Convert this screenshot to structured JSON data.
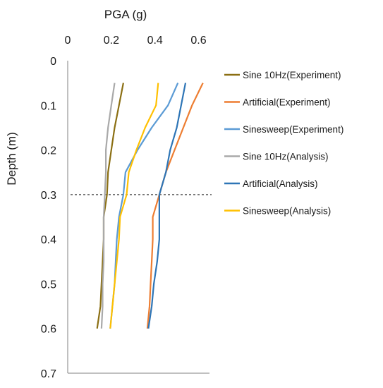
{
  "chart_data": {
    "type": "line",
    "x_axis": {
      "label": "PGA (g)",
      "position": "top",
      "range": [
        0,
        0.65
      ],
      "ticks": [
        "0",
        "0.2",
        "0.4",
        "0.6"
      ],
      "tick_values": [
        0,
        0.2,
        0.4,
        0.6
      ]
    },
    "y_axis": {
      "label": "Depth (m)",
      "reversed": true,
      "range": [
        0,
        0.7
      ],
      "ticks": [
        "0",
        "0.1",
        "0.2",
        "0.3",
        "0.4",
        "0.5",
        "0.6",
        "0.7"
      ],
      "tick_values": [
        0,
        0.1,
        0.2,
        0.3,
        0.4,
        0.5,
        0.6,
        0.7
      ]
    },
    "grid": false,
    "reference_line": {
      "depth": 0.3,
      "style": "dashed"
    },
    "legend": {
      "placement": "right"
    },
    "series": [
      {
        "name": "Sine 10Hz(Experiment)",
        "color": "#8B6F13",
        "points": [
          [
            0.255,
            0.05
          ],
          [
            0.235,
            0.1
          ],
          [
            0.215,
            0.15
          ],
          [
            0.2,
            0.2
          ],
          [
            0.185,
            0.25
          ],
          [
            0.18,
            0.3
          ],
          [
            0.165,
            0.35
          ],
          [
            0.165,
            0.4
          ],
          [
            0.16,
            0.45
          ],
          [
            0.155,
            0.5
          ],
          [
            0.15,
            0.55
          ],
          [
            0.135,
            0.6
          ]
        ]
      },
      {
        "name": "Artificial(Experiment)",
        "color": "#ED7D31",
        "points": [
          [
            0.62,
            0.05
          ],
          [
            0.57,
            0.1
          ],
          [
            0.53,
            0.15
          ],
          [
            0.49,
            0.2
          ],
          [
            0.45,
            0.25
          ],
          [
            0.42,
            0.3
          ],
          [
            0.39,
            0.35
          ],
          [
            0.39,
            0.4
          ],
          [
            0.385,
            0.45
          ],
          [
            0.38,
            0.5
          ],
          [
            0.375,
            0.55
          ],
          [
            0.365,
            0.6
          ]
        ]
      },
      {
        "name": "Sinesweep(Experiment)",
        "color": "#5B9BD5",
        "points": [
          [
            0.505,
            0.05
          ],
          [
            0.46,
            0.1
          ],
          [
            0.385,
            0.15
          ],
          [
            0.32,
            0.2
          ],
          [
            0.265,
            0.25
          ],
          [
            0.255,
            0.3
          ],
          [
            0.235,
            0.35
          ],
          [
            0.225,
            0.4
          ],
          [
            0.22,
            0.45
          ],
          [
            0.215,
            0.5
          ],
          [
            0.205,
            0.55
          ],
          [
            0.195,
            0.6
          ]
        ]
      },
      {
        "name": "Sine 10Hz(Analysis)",
        "color": "#A9A9A9",
        "points": [
          [
            0.215,
            0.05
          ],
          [
            0.2,
            0.1
          ],
          [
            0.185,
            0.15
          ],
          [
            0.175,
            0.2
          ],
          [
            0.175,
            0.25
          ],
          [
            0.17,
            0.3
          ],
          [
            0.165,
            0.35
          ],
          [
            0.165,
            0.4
          ],
          [
            0.165,
            0.45
          ],
          [
            0.16,
            0.5
          ],
          [
            0.16,
            0.55
          ],
          [
            0.155,
            0.6
          ]
        ]
      },
      {
        "name": "Artificial(Analysis)",
        "color": "#2E75B6",
        "points": [
          [
            0.54,
            0.05
          ],
          [
            0.52,
            0.1
          ],
          [
            0.5,
            0.15
          ],
          [
            0.47,
            0.2
          ],
          [
            0.45,
            0.25
          ],
          [
            0.42,
            0.3
          ],
          [
            0.42,
            0.35
          ],
          [
            0.42,
            0.4
          ],
          [
            0.41,
            0.45
          ],
          [
            0.395,
            0.5
          ],
          [
            0.385,
            0.55
          ],
          [
            0.37,
            0.6
          ]
        ]
      },
      {
        "name": "Sinesweep(Analysis)",
        "color": "#FFC000",
        "points": [
          [
            0.415,
            0.05
          ],
          [
            0.405,
            0.1
          ],
          [
            0.355,
            0.15
          ],
          [
            0.315,
            0.2
          ],
          [
            0.28,
            0.25
          ],
          [
            0.27,
            0.3
          ],
          [
            0.24,
            0.35
          ],
          [
            0.235,
            0.4
          ],
          [
            0.225,
            0.45
          ],
          [
            0.215,
            0.5
          ],
          [
            0.205,
            0.55
          ],
          [
            0.195,
            0.6
          ]
        ]
      }
    ]
  }
}
